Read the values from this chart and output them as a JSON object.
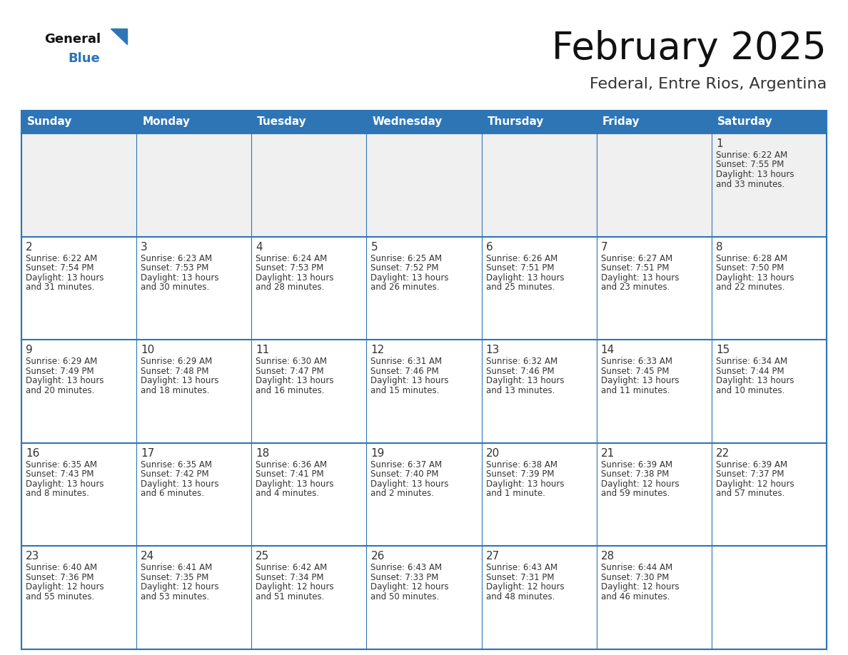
{
  "title": "February 2025",
  "subtitle": "Federal, Entre Rios, Argentina",
  "header_bg": "#2E75B6",
  "header_text_color": "#FFFFFF",
  "cell_bg_white": "#FFFFFF",
  "cell_bg_gray": "#F0F0F0",
  "cell_border_color": "#2E75B6",
  "day_number_color": "#333333",
  "cell_text_color": "#333333",
  "title_color": "#111111",
  "subtitle_color": "#333333",
  "days_of_week": [
    "Sunday",
    "Monday",
    "Tuesday",
    "Wednesday",
    "Thursday",
    "Friday",
    "Saturday"
  ],
  "logo_general_color": "#111111",
  "logo_blue_color": "#2E75B6",
  "calendar_data": [
    [
      null,
      null,
      null,
      null,
      null,
      null,
      {
        "day": 1,
        "sunrise": "6:22 AM",
        "sunset": "7:55 PM",
        "daylight_hours": 13,
        "daylight_minutes": 33
      }
    ],
    [
      {
        "day": 2,
        "sunrise": "6:22 AM",
        "sunset": "7:54 PM",
        "daylight_hours": 13,
        "daylight_minutes": 31
      },
      {
        "day": 3,
        "sunrise": "6:23 AM",
        "sunset": "7:53 PM",
        "daylight_hours": 13,
        "daylight_minutes": 30
      },
      {
        "day": 4,
        "sunrise": "6:24 AM",
        "sunset": "7:53 PM",
        "daylight_hours": 13,
        "daylight_minutes": 28
      },
      {
        "day": 5,
        "sunrise": "6:25 AM",
        "sunset": "7:52 PM",
        "daylight_hours": 13,
        "daylight_minutes": 26
      },
      {
        "day": 6,
        "sunrise": "6:26 AM",
        "sunset": "7:51 PM",
        "daylight_hours": 13,
        "daylight_minutes": 25
      },
      {
        "day": 7,
        "sunrise": "6:27 AM",
        "sunset": "7:51 PM",
        "daylight_hours": 13,
        "daylight_minutes": 23
      },
      {
        "day": 8,
        "sunrise": "6:28 AM",
        "sunset": "7:50 PM",
        "daylight_hours": 13,
        "daylight_minutes": 22
      }
    ],
    [
      {
        "day": 9,
        "sunrise": "6:29 AM",
        "sunset": "7:49 PM",
        "daylight_hours": 13,
        "daylight_minutes": 20
      },
      {
        "day": 10,
        "sunrise": "6:29 AM",
        "sunset": "7:48 PM",
        "daylight_hours": 13,
        "daylight_minutes": 18
      },
      {
        "day": 11,
        "sunrise": "6:30 AM",
        "sunset": "7:47 PM",
        "daylight_hours": 13,
        "daylight_minutes": 16
      },
      {
        "day": 12,
        "sunrise": "6:31 AM",
        "sunset": "7:46 PM",
        "daylight_hours": 13,
        "daylight_minutes": 15
      },
      {
        "day": 13,
        "sunrise": "6:32 AM",
        "sunset": "7:46 PM",
        "daylight_hours": 13,
        "daylight_minutes": 13
      },
      {
        "day": 14,
        "sunrise": "6:33 AM",
        "sunset": "7:45 PM",
        "daylight_hours": 13,
        "daylight_minutes": 11
      },
      {
        "day": 15,
        "sunrise": "6:34 AM",
        "sunset": "7:44 PM",
        "daylight_hours": 13,
        "daylight_minutes": 10
      }
    ],
    [
      {
        "day": 16,
        "sunrise": "6:35 AM",
        "sunset": "7:43 PM",
        "daylight_hours": 13,
        "daylight_minutes": 8
      },
      {
        "day": 17,
        "sunrise": "6:35 AM",
        "sunset": "7:42 PM",
        "daylight_hours": 13,
        "daylight_minutes": 6
      },
      {
        "day": 18,
        "sunrise": "6:36 AM",
        "sunset": "7:41 PM",
        "daylight_hours": 13,
        "daylight_minutes": 4
      },
      {
        "day": 19,
        "sunrise": "6:37 AM",
        "sunset": "7:40 PM",
        "daylight_hours": 13,
        "daylight_minutes": 2
      },
      {
        "day": 20,
        "sunrise": "6:38 AM",
        "sunset": "7:39 PM",
        "daylight_hours": 13,
        "daylight_minutes": 1
      },
      {
        "day": 21,
        "sunrise": "6:39 AM",
        "sunset": "7:38 PM",
        "daylight_hours": 12,
        "daylight_minutes": 59
      },
      {
        "day": 22,
        "sunrise": "6:39 AM",
        "sunset": "7:37 PM",
        "daylight_hours": 12,
        "daylight_minutes": 57
      }
    ],
    [
      {
        "day": 23,
        "sunrise": "6:40 AM",
        "sunset": "7:36 PM",
        "daylight_hours": 12,
        "daylight_minutes": 55
      },
      {
        "day": 24,
        "sunrise": "6:41 AM",
        "sunset": "7:35 PM",
        "daylight_hours": 12,
        "daylight_minutes": 53
      },
      {
        "day": 25,
        "sunrise": "6:42 AM",
        "sunset": "7:34 PM",
        "daylight_hours": 12,
        "daylight_minutes": 51
      },
      {
        "day": 26,
        "sunrise": "6:43 AM",
        "sunset": "7:33 PM",
        "daylight_hours": 12,
        "daylight_minutes": 50
      },
      {
        "day": 27,
        "sunrise": "6:43 AM",
        "sunset": "7:31 PM",
        "daylight_hours": 12,
        "daylight_minutes": 48
      },
      {
        "day": 28,
        "sunrise": "6:44 AM",
        "sunset": "7:30 PM",
        "daylight_hours": 12,
        "daylight_minutes": 46
      },
      null
    ]
  ]
}
